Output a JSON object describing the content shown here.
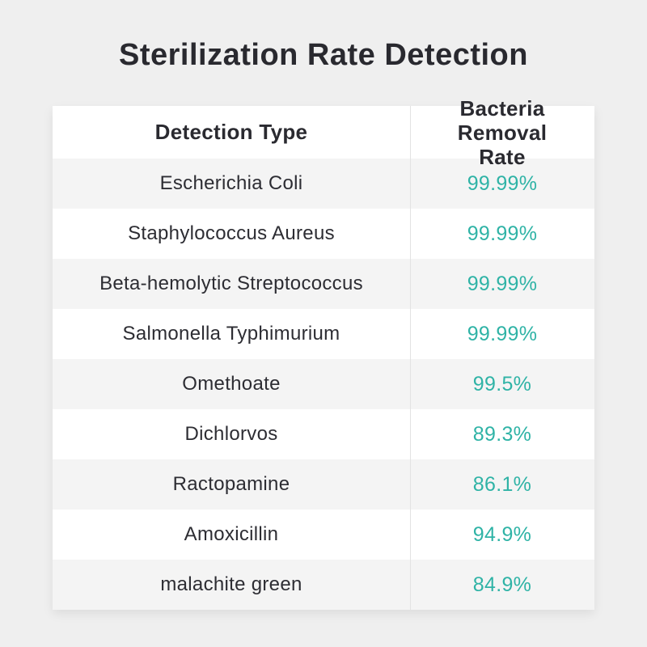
{
  "page": {
    "title": "Sterilization Rate Detection",
    "background_color": "#efefef",
    "accent_color": "#2fb3a6",
    "text_color": "#2d2d33"
  },
  "table": {
    "headers": {
      "col1": "Detection Type",
      "col2": "Bacteria Removal Rate"
    },
    "rows": [
      {
        "type": "Escherichia Coli",
        "rate": "99.99%"
      },
      {
        "type": "Staphylococcus Aureus",
        "rate": "99.99%"
      },
      {
        "type": "Beta-hemolytic Streptococcus",
        "rate": "99.99%"
      },
      {
        "type": "Salmonella Typhimurium",
        "rate": "99.99%"
      },
      {
        "type": "Omethoate",
        "rate": "99.5%"
      },
      {
        "type": "Dichlorvos",
        "rate": "89.3%"
      },
      {
        "type": "Ractopamine",
        "rate": "86.1%"
      },
      {
        "type": "Amoxicillin",
        "rate": "94.9%"
      },
      {
        "type": "malachite green",
        "rate": "84.9%"
      }
    ]
  },
  "chart_data": {
    "type": "table",
    "title": "Sterilization Rate Detection",
    "columns": [
      "Detection Type",
      "Bacteria Removal Rate"
    ],
    "rows": [
      [
        "Escherichia Coli",
        "99.99%"
      ],
      [
        "Staphylococcus Aureus",
        "99.99%"
      ],
      [
        "Beta-hemolytic Streptococcus",
        "99.99%"
      ],
      [
        "Salmonella Typhimurium",
        "99.99%"
      ],
      [
        "Omethoate",
        "99.5%"
      ],
      [
        "Dichlorvos",
        "89.3%"
      ],
      [
        "Ractopamine",
        "86.1%"
      ],
      [
        "Amoxicillin",
        "94.9%"
      ],
      [
        "malachite green",
        "84.9%"
      ]
    ],
    "values_numeric": [
      99.99,
      99.99,
      99.99,
      99.99,
      99.5,
      89.3,
      86.1,
      94.9,
      84.9
    ],
    "value_unit": "%",
    "accent_color": "#2fb3a6"
  }
}
